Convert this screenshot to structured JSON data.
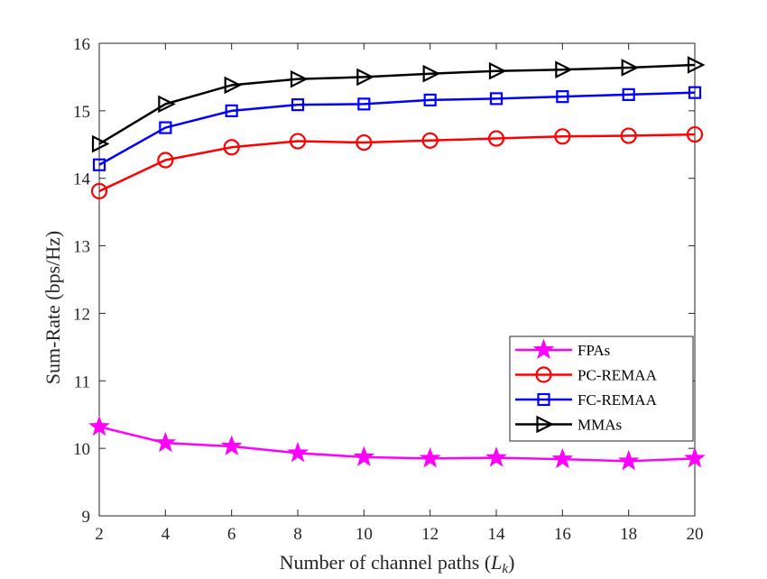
{
  "chart_data": {
    "type": "line",
    "title": "",
    "xlabel": "Number of channel paths (",
    "xlabel_var": "L",
    "xlabel_sub": "k",
    "xlabel_close": ")",
    "ylabel": "Sum-Rate (bps/Hz)",
    "x": [
      2,
      4,
      6,
      8,
      10,
      12,
      14,
      16,
      18,
      20
    ],
    "xlim": [
      2,
      20
    ],
    "ylim": [
      9,
      16
    ],
    "xticks": [
      2,
      4,
      6,
      8,
      10,
      12,
      14,
      16,
      18,
      20
    ],
    "yticks": [
      9,
      10,
      11,
      12,
      13,
      14,
      15,
      16
    ],
    "grid": false,
    "legend_position": "lower-right",
    "series": [
      {
        "name": "FPAs",
        "color": "#ff00ff",
        "marker": "star",
        "values": [
          10.32,
          10.08,
          10.03,
          9.93,
          9.87,
          9.85,
          9.86,
          9.84,
          9.81,
          9.85
        ]
      },
      {
        "name": "PC-REMAA",
        "color": "#ff0000",
        "marker": "circle",
        "values": [
          13.81,
          14.27,
          14.46,
          14.55,
          14.53,
          14.56,
          14.59,
          14.62,
          14.63,
          14.65
        ]
      },
      {
        "name": "FC-REMAA",
        "color": "#0000ff",
        "marker": "square",
        "values": [
          14.2,
          14.75,
          15.0,
          15.09,
          15.1,
          15.16,
          15.18,
          15.21,
          15.24,
          15.27
        ]
      },
      {
        "name": "MMAs",
        "color": "#000000",
        "marker": "triangle-right",
        "values": [
          14.51,
          15.1,
          15.38,
          15.47,
          15.5,
          15.55,
          15.59,
          15.61,
          15.64,
          15.68
        ]
      }
    ]
  }
}
